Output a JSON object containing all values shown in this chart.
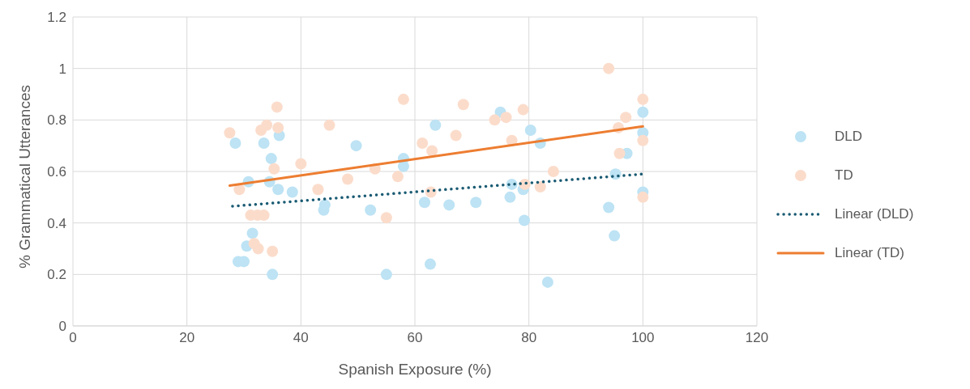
{
  "chart_data": {
    "type": "scatter",
    "xlabel": "Spanish Exposure (%)",
    "ylabel": "% Grammatical Utterances",
    "xlim": [
      0,
      120
    ],
    "xticks": [
      0,
      20,
      40,
      60,
      80,
      100,
      120
    ],
    "ylim": [
      0,
      1.2
    ],
    "yticks": [
      0,
      0.2,
      0.4,
      0.6,
      0.8,
      1,
      1.2
    ],
    "grid": true,
    "legend": "right",
    "series": [
      {
        "name": "DLD",
        "color": "#bde3f4",
        "marker": "circle",
        "x": [
          28.5,
          29,
          30,
          30.5,
          30.8,
          31.5,
          33.5,
          34.5,
          34.8,
          35,
          36,
          36.2,
          38.5,
          44,
          44.2,
          49.7,
          52.2,
          55,
          58,
          58,
          61.7,
          62.7,
          63.6,
          66,
          70.7,
          75,
          76.7,
          77,
          79,
          79.2,
          80.3,
          82,
          83.3,
          94,
          95,
          95.2,
          97.2,
          100,
          100,
          100
        ],
        "values": [
          0.71,
          0.25,
          0.25,
          0.31,
          0.56,
          0.36,
          0.71,
          0.56,
          0.65,
          0.2,
          0.53,
          0.74,
          0.52,
          0.45,
          0.47,
          0.7,
          0.45,
          0.2,
          0.62,
          0.65,
          0.48,
          0.24,
          0.78,
          0.47,
          0.48,
          0.83,
          0.5,
          0.55,
          0.53,
          0.41,
          0.76,
          0.71,
          0.17,
          0.46,
          0.35,
          0.59,
          0.67,
          0.83,
          0.75,
          0.52
        ]
      },
      {
        "name": "TD",
        "color": "#fbdccb",
        "marker": "circle",
        "x": [
          27.5,
          29.2,
          31.2,
          32.4,
          31.8,
          32.5,
          33,
          33.5,
          34,
          35,
          35.3,
          35.8,
          36,
          40,
          43,
          45,
          48.2,
          53,
          55,
          57,
          58,
          61.3,
          62.8,
          63,
          67.2,
          68.5,
          74,
          76,
          77,
          79,
          79.3,
          82,
          84.3,
          94,
          95.7,
          95.9,
          97,
          100,
          100,
          100
        ],
        "values": [
          0.75,
          0.53,
          0.43,
          0.43,
          0.32,
          0.3,
          0.76,
          0.43,
          0.78,
          0.29,
          0.61,
          0.85,
          0.77,
          0.63,
          0.53,
          0.78,
          0.57,
          0.61,
          0.42,
          0.58,
          0.88,
          0.71,
          0.52,
          0.68,
          0.74,
          0.86,
          0.8,
          0.81,
          0.72,
          0.84,
          0.55,
          0.54,
          0.6,
          1,
          0.77,
          0.67,
          0.81,
          0.88,
          0.72,
          0.5
        ]
      },
      {
        "name": "Linear (DLD)",
        "type": "line",
        "marker": "none",
        "line_style": "dotted",
        "color": "#1a5b73",
        "x": [
          28,
          100
        ],
        "values": [
          0.465,
          0.59
        ]
      },
      {
        "name": "Linear (TD)",
        "type": "line",
        "marker": "none",
        "line_style": "solid",
        "color": "#ed7d31",
        "x": [
          27.5,
          100
        ],
        "values": [
          0.545,
          0.775
        ]
      }
    ]
  }
}
